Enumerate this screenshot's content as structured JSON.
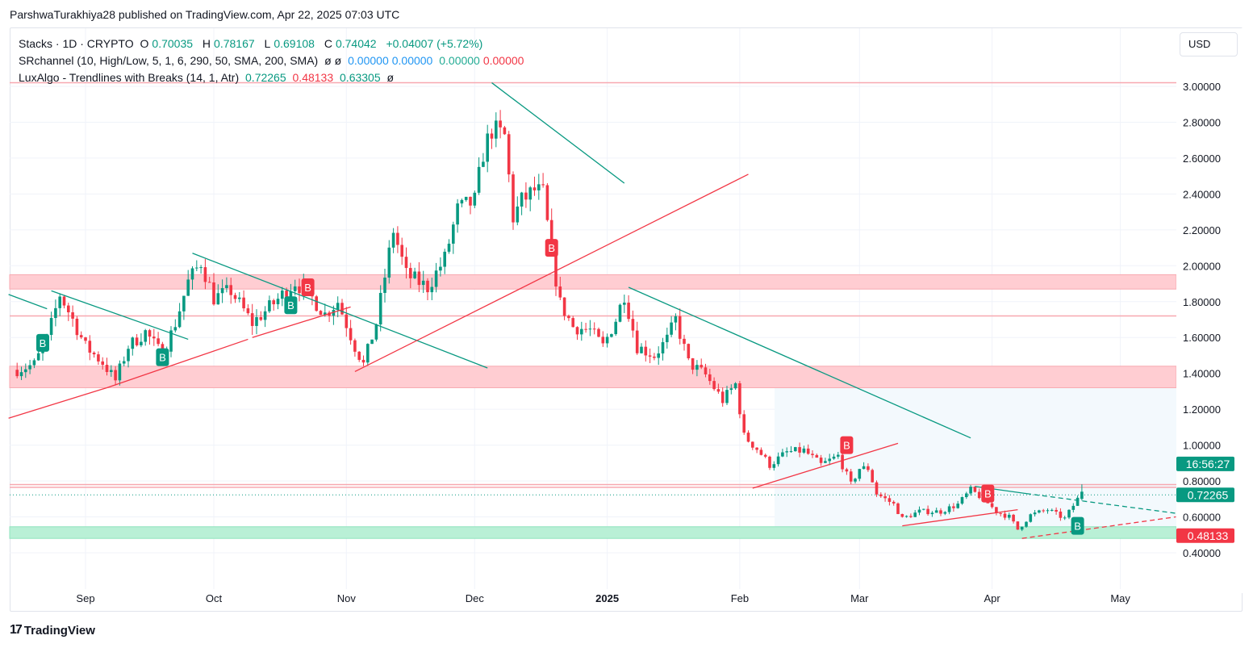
{
  "header": {
    "published": "ParshwaTurakhiya28 published on TradingView.com, Apr 22, 2025 07:03 UTC"
  },
  "legend": {
    "symbol": "Stacks · 1D · CRYPTO",
    "o_label": "O",
    "o": "0.70035",
    "h_label": "H",
    "h": "0.78167",
    "l_label": "L",
    "l": "0.69108",
    "c_label": "C",
    "c": "0.74042",
    "change": "+0.04007 (+5.72%)",
    "sr_name": "SRchannel (10, High/Low, 5, 1, 6, 290, 50, SMA, 200, SMA)",
    "sr_na1": "ø",
    "sr_na2": "ø",
    "sr_v1": "0.00000",
    "sr_v2": "0.00000",
    "sr_v3": "0.00000",
    "sr_v4": "0.00000",
    "lux_name": "LuxAlgo - Trendlines with Breaks (14, 1, Atr)",
    "lux_v1": "0.72265",
    "lux_v2": "0.48133",
    "lux_v3": "0.63305",
    "lux_na": "ø"
  },
  "currency": "USD",
  "footer": {
    "brand": "TradingView"
  },
  "colors": {
    "up": "#089981",
    "down": "#f23645",
    "zone_red": "#ffcdd2",
    "zone_green": "#b9f0d6"
  },
  "chart_data": {
    "type": "candlestick",
    "ylim": [
      0.3,
      3.1
    ],
    "y_ticks": [
      "3.00000",
      "2.80000",
      "2.60000",
      "2.40000",
      "2.20000",
      "2.00000",
      "1.80000",
      "1.60000",
      "1.40000",
      "1.20000",
      "1.00000",
      "0.80000",
      "0.60000",
      "0.40000"
    ],
    "x_ticks": [
      {
        "label": "Sep",
        "date": "2024-09-01"
      },
      {
        "label": "Oct",
        "date": "2024-10-01"
      },
      {
        "label": "Nov",
        "date": "2024-11-01"
      },
      {
        "label": "Dec",
        "date": "2024-12-01"
      },
      {
        "label": "2025",
        "date": "2025-01-01",
        "bold": true
      },
      {
        "label": "Feb",
        "date": "2025-02-01"
      },
      {
        "label": "Mar",
        "date": "2025-03-01"
      },
      {
        "label": "Apr",
        "date": "2025-04-01"
      },
      {
        "label": "May",
        "date": "2025-05-01"
      }
    ],
    "x_range": [
      "2024-08-14",
      "2025-05-14"
    ],
    "approx_closes": [
      [
        "2024-08-16",
        1.42
      ],
      [
        "2024-08-20",
        1.45
      ],
      [
        "2024-08-23",
        1.59
      ],
      [
        "2024-08-26",
        1.84
      ],
      [
        "2024-08-29",
        1.7
      ],
      [
        "2024-09-01",
        1.55
      ],
      [
        "2024-09-05",
        1.46
      ],
      [
        "2024-09-08",
        1.36
      ],
      [
        "2024-09-11",
        1.55
      ],
      [
        "2024-09-15",
        1.63
      ],
      [
        "2024-09-19",
        1.5
      ],
      [
        "2024-09-22",
        1.68
      ],
      [
        "2024-09-25",
        1.91
      ],
      [
        "2024-09-28",
        2.02
      ],
      [
        "2024-10-01",
        1.82
      ],
      [
        "2024-10-05",
        1.86
      ],
      [
        "2024-10-10",
        1.68
      ],
      [
        "2024-10-15",
        1.79
      ],
      [
        "2024-10-20",
        1.91
      ],
      [
        "2024-10-24",
        1.82
      ],
      [
        "2024-10-27",
        1.73
      ],
      [
        "2024-10-30",
        1.8
      ],
      [
        "2024-11-03",
        1.55
      ],
      [
        "2024-11-05",
        1.45
      ],
      [
        "2024-11-08",
        1.68
      ],
      [
        "2024-11-12",
        2.2
      ],
      [
        "2024-11-15",
        1.95
      ],
      [
        "2024-11-20",
        1.88
      ],
      [
        "2024-11-24",
        2.04
      ],
      [
        "2024-11-27",
        2.31
      ],
      [
        "2024-12-01",
        2.36
      ],
      [
        "2024-12-03",
        2.63
      ],
      [
        "2024-12-05",
        2.76
      ],
      [
        "2024-12-08",
        2.72
      ],
      [
        "2024-12-10",
        2.27
      ],
      [
        "2024-12-12",
        2.36
      ],
      [
        "2024-12-15",
        2.42
      ],
      [
        "2024-12-17",
        2.4
      ],
      [
        "2024-12-19",
        2.06
      ],
      [
        "2024-12-21",
        1.79
      ],
      [
        "2024-12-24",
        1.66
      ],
      [
        "2024-12-28",
        1.64
      ],
      [
        "2024-12-31",
        1.55
      ],
      [
        "2025-01-03",
        1.7
      ],
      [
        "2025-01-05",
        1.84
      ],
      [
        "2025-01-08",
        1.55
      ],
      [
        "2025-01-12",
        1.5
      ],
      [
        "2025-01-15",
        1.59
      ],
      [
        "2025-01-17",
        1.7
      ],
      [
        "2025-01-20",
        1.46
      ],
      [
        "2025-01-24",
        1.39
      ],
      [
        "2025-01-28",
        1.25
      ],
      [
        "2025-01-31",
        1.34
      ],
      [
        "2025-02-02",
        1.05
      ],
      [
        "2025-02-05",
        0.98
      ],
      [
        "2025-02-08",
        0.89
      ],
      [
        "2025-02-12",
        0.96
      ],
      [
        "2025-02-16",
        0.97
      ],
      [
        "2025-02-20",
        0.89
      ],
      [
        "2025-02-24",
        0.94
      ],
      [
        "2025-02-27",
        0.78
      ],
      [
        "2025-03-01",
        0.87
      ],
      [
        "2025-03-03",
        0.87
      ],
      [
        "2025-03-05",
        0.73
      ],
      [
        "2025-03-09",
        0.67
      ],
      [
        "2025-03-11",
        0.59
      ],
      [
        "2025-03-15",
        0.63
      ],
      [
        "2025-03-20",
        0.63
      ],
      [
        "2025-03-24",
        0.67
      ],
      [
        "2025-03-27",
        0.75
      ],
      [
        "2025-03-30",
        0.7
      ],
      [
        "2025-04-02",
        0.63
      ],
      [
        "2025-04-05",
        0.6
      ],
      [
        "2025-04-07",
        0.53
      ],
      [
        "2025-04-10",
        0.61
      ],
      [
        "2025-04-14",
        0.64
      ],
      [
        "2025-04-18",
        0.59
      ],
      [
        "2025-04-21",
        0.7
      ],
      [
        "2025-04-22",
        0.74042
      ]
    ],
    "last_candle": {
      "date": "2025-04-22",
      "open": 0.70035,
      "high": 0.78167,
      "low": 0.69108,
      "close": 0.74042
    },
    "zones": [
      {
        "from": 1.87,
        "to": 1.95,
        "color": "red"
      },
      {
        "from": 1.32,
        "to": 1.44,
        "color": "red"
      },
      {
        "from": 0.48,
        "to": 0.545,
        "color": "green"
      }
    ],
    "levels": [
      {
        "price": 3.02,
        "color": "red"
      },
      {
        "price": 1.72,
        "color": "red"
      },
      {
        "price": 0.78,
        "color": "red"
      },
      {
        "price": 0.765,
        "color": "red"
      }
    ],
    "trendlines": [
      {
        "color": "green",
        "from": [
          "2024-08-14",
          1.84
        ],
        "to": [
          "2024-08-23",
          1.76
        ]
      },
      {
        "color": "green",
        "from": [
          "2024-08-24",
          1.86
        ],
        "to": [
          "2024-09-25",
          1.59
        ]
      },
      {
        "color": "green",
        "from": [
          "2024-09-26",
          2.07
        ],
        "to": [
          "2024-12-04",
          1.43
        ]
      },
      {
        "color": "green",
        "from": [
          "2024-12-05",
          3.02
        ],
        "to": [
          "2025-01-05",
          2.46
        ]
      },
      {
        "color": "green",
        "from": [
          "2025-01-06",
          1.88
        ],
        "to": [
          "2025-03-27",
          1.04
        ]
      },
      {
        "color": "green",
        "from": [
          "2025-03-28",
          0.77
        ],
        "to": [
          "2025-04-09",
          0.73
        ]
      },
      {
        "color": "green",
        "from": [
          "2025-04-09",
          0.73
        ],
        "to": [
          "2025-05-14",
          0.62
        ],
        "dashed": true
      },
      {
        "color": "red",
        "from": [
          "2024-08-14",
          1.15
        ],
        "to": [
          "2024-09-06",
          1.32
        ]
      },
      {
        "color": "red",
        "from": [
          "2024-09-06",
          1.32
        ],
        "to": [
          "2024-10-09",
          1.59
        ]
      },
      {
        "color": "red",
        "from": [
          "2024-10-10",
          1.6
        ],
        "to": [
          "2024-11-02",
          1.77
        ]
      },
      {
        "color": "red",
        "from": [
          "2024-11-03",
          1.41
        ],
        "to": [
          "2025-02-03",
          2.51
        ]
      },
      {
        "color": "red",
        "from": [
          "2025-02-04",
          0.76
        ],
        "to": [
          "2025-03-10",
          1.01
        ]
      },
      {
        "color": "red",
        "from": [
          "2025-03-11",
          0.55
        ],
        "to": [
          "2025-04-07",
          0.64
        ]
      },
      {
        "color": "red",
        "from": [
          "2025-04-08",
          0.48
        ],
        "to": [
          "2025-05-14",
          0.6
        ],
        "dashed": true
      }
    ],
    "signals": [
      {
        "text": "B",
        "type": "bull",
        "date": "2024-08-22",
        "price": 1.57
      },
      {
        "text": "B",
        "type": "bull",
        "date": "2024-09-19",
        "price": 1.49
      },
      {
        "text": "B",
        "type": "bull",
        "date": "2024-10-19",
        "price": 1.78
      },
      {
        "text": "B",
        "type": "bull",
        "date": "2025-04-21",
        "price": 0.55
      },
      {
        "text": "B",
        "type": "bear",
        "date": "2024-10-23",
        "price": 1.88
      },
      {
        "text": "B",
        "type": "bear",
        "date": "2024-12-19",
        "price": 2.1
      },
      {
        "text": "B",
        "type": "bear",
        "date": "2025-02-26",
        "price": 1.0
      },
      {
        "text": "B",
        "type": "bear",
        "date": "2025-03-31",
        "price": 0.73
      }
    ],
    "price_labels": [
      {
        "text": "16:56:27",
        "color": "#089981"
      },
      {
        "text": "0.72265",
        "color": "#089981",
        "price": 0.72265
      },
      {
        "text": "0.48133",
        "color": "#f23645",
        "price": 0.48133
      }
    ]
  }
}
